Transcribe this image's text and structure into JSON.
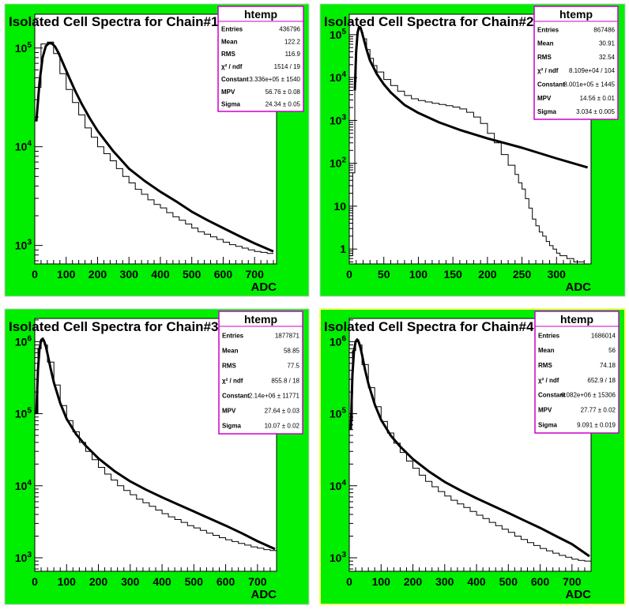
{
  "colors": {
    "pad_fill": "#00ee00",
    "frame_fill": "#ffffff",
    "stats_border": "#cc00cc",
    "stats_fill": "#ffffff",
    "highlight_border": "#ffff66"
  },
  "chart_data": [
    {
      "type": "line",
      "title": "Isolated Cell Spectra for Chain#1",
      "xlabel": "ADC",
      "log_y": true,
      "xlim": [
        0,
        770
      ],
      "ylim": [
        650,
        220000
      ],
      "x_ticks": [
        0,
        100,
        200,
        300,
        400,
        500,
        600,
        700
      ],
      "y_ticks": [
        {
          "value": 1000,
          "label": "10^3"
        },
        {
          "value": 10000,
          "label": "10^4"
        },
        {
          "value": 100000,
          "label": "10^5"
        }
      ],
      "stats": {
        "name": "htemp",
        "rows": [
          {
            "label": "Entries",
            "value": "436796"
          },
          {
            "label": "Mean",
            "value": "122.2"
          },
          {
            "label": "RMS",
            "value": "116.9"
          },
          {
            "label": "χ² / ndf",
            "value": "1514 / 19"
          },
          {
            "label": "Constant",
            "value": "3.336e+05 ± 1540"
          },
          {
            "label": "MPV",
            "value": "56.76 ± 0.08"
          },
          {
            "label": "Sigma",
            "value": "24.34 ± 0.05"
          }
        ]
      },
      "histogram": {
        "edges": [
          0,
          20,
          40,
          60,
          80,
          100,
          120,
          140,
          160,
          180,
          200,
          220,
          240,
          260,
          280,
          300,
          320,
          340,
          360,
          380,
          400,
          420,
          440,
          460,
          480,
          500,
          520,
          540,
          560,
          580,
          600,
          620,
          640,
          660,
          680,
          700,
          720,
          740,
          760
        ],
        "counts": [
          40000,
          110000,
          115000,
          88000,
          55000,
          38000,
          28000,
          21000,
          15500,
          12500,
          10000,
          8500,
          7200,
          6000,
          5000,
          4300,
          3700,
          3300,
          2900,
          2600,
          2400,
          2150,
          1950,
          1800,
          1650,
          1500,
          1380,
          1300,
          1220,
          1150,
          1080,
          1020,
          980,
          940,
          900,
          870,
          850,
          830
        ]
      },
      "fit": {
        "x": [
          5,
          15,
          25,
          35,
          45,
          55,
          65,
          75,
          90,
          110,
          130,
          150,
          175,
          200,
          250,
          300,
          350,
          400,
          450,
          500,
          550,
          600,
          650,
          700,
          760
        ],
        "y": [
          18000,
          45000,
          80000,
          104000,
          112000,
          111000,
          103000,
          90000,
          70000,
          50000,
          36000,
          27000,
          19500,
          14500,
          9000,
          6000,
          4500,
          3500,
          2800,
          2200,
          1800,
          1500,
          1250,
          1050,
          870
        ]
      }
    },
    {
      "type": "line",
      "title": "Isolated Cell Spectra for Chain#2",
      "xlabel": "ADC",
      "log_y": true,
      "xlim": [
        0,
        350
      ],
      "ylim": [
        0.45,
        300000
      ],
      "x_ticks": [
        0,
        50,
        100,
        150,
        200,
        250,
        300
      ],
      "y_ticks": [
        {
          "value": 1,
          "label": "1"
        },
        {
          "value": 10,
          "label": "10"
        },
        {
          "value": 100,
          "label": "10^2"
        },
        {
          "value": 1000,
          "label": "10^3"
        },
        {
          "value": 10000,
          "label": "10^4"
        },
        {
          "value": 100000,
          "label": "10^5"
        }
      ],
      "stats": {
        "name": "htemp",
        "rows": [
          {
            "label": "Entries",
            "value": "867486"
          },
          {
            "label": "Mean",
            "value": "30.91"
          },
          {
            "label": "RMS",
            "value": "32.54"
          },
          {
            "label": "χ² / ndf",
            "value": "8.109e+04 / 104"
          },
          {
            "label": "Constant",
            "value": "8.001e+05 ± 1445"
          },
          {
            "label": "MPV",
            "value": "14.56 ± 0.01"
          },
          {
            "label": "Sigma",
            "value": "3.034 ± 0.005"
          }
        ]
      },
      "histogram": {
        "edges": [
          0,
          5,
          8,
          10,
          12,
          14,
          16,
          18,
          20,
          25,
          30,
          35,
          40,
          50,
          60,
          70,
          80,
          90,
          100,
          110,
          120,
          130,
          140,
          150,
          160,
          170,
          180,
          190,
          200,
          210,
          220,
          230,
          240,
          245,
          250,
          255,
          260,
          265,
          270,
          275,
          280,
          285,
          290,
          295,
          300,
          305,
          310,
          315,
          320,
          325,
          330,
          335,
          340
        ],
        "counts": [
          0.7,
          60,
          8000,
          60000,
          130000,
          155000,
          140000,
          110000,
          80000,
          45000,
          28000,
          19000,
          13500,
          9000,
          6500,
          4800,
          3800,
          3200,
          2900,
          2700,
          2500,
          2350,
          2200,
          2050,
          1850,
          1550,
          1200,
          850,
          500,
          300,
          160,
          90,
          55,
          35,
          25,
          15,
          9,
          5,
          3.5,
          2.5,
          2,
          1.5,
          1.2,
          1,
          0.8,
          0.7,
          0.7,
          0.6,
          0.6,
          0.5,
          0.5,
          0.5
        ]
      },
      "fit": {
        "x": [
          8,
          10,
          12,
          14,
          16,
          18,
          20,
          25,
          30,
          40,
          50,
          60,
          80,
          100,
          130,
          160,
          200,
          250,
          300,
          345
        ],
        "y": [
          5000,
          40000,
          110000,
          150000,
          148000,
          120000,
          90000,
          45000,
          25000,
          12000,
          7000,
          4500,
          2300,
          1500,
          900,
          600,
          380,
          230,
          130,
          80
        ]
      }
    },
    {
      "type": "line",
      "title": "Isolated Cell Spectra for Chain#3",
      "xlabel": "ADC",
      "log_y": true,
      "xlim": [
        0,
        760
      ],
      "ylim": [
        650,
        2100000
      ],
      "x_ticks": [
        0,
        100,
        200,
        300,
        400,
        500,
        600,
        700
      ],
      "y_ticks": [
        {
          "value": 1000,
          "label": "10^3"
        },
        {
          "value": 10000,
          "label": "10^4"
        },
        {
          "value": 100000,
          "label": "10^5"
        },
        {
          "value": 1000000,
          "label": "10^6"
        }
      ],
      "stats": {
        "name": "htemp",
        "rows": [
          {
            "label": "Entries",
            "value": "1877871"
          },
          {
            "label": "Mean",
            "value": "58.85"
          },
          {
            "label": "RMS",
            "value": "77.5"
          },
          {
            "label": "χ² / ndf",
            "value": "855.8 / 18"
          },
          {
            "label": "Constant",
            "value": "2.14e+06 ± 11771"
          },
          {
            "label": "MPV",
            "value": "27.64 ± 0.03"
          },
          {
            "label": "Sigma",
            "value": "10.07 ± 0.02"
          }
        ]
      },
      "histogram": {
        "edges": [
          0,
          10,
          20,
          30,
          40,
          60,
          80,
          100,
          120,
          140,
          160,
          180,
          200,
          220,
          240,
          260,
          280,
          300,
          320,
          340,
          360,
          380,
          400,
          420,
          440,
          460,
          480,
          500,
          520,
          540,
          560,
          580,
          600,
          620,
          640,
          660,
          680,
          700,
          720,
          740,
          760
        ],
        "counts": [
          100000,
          800000,
          1050000,
          900000,
          520000,
          250000,
          130000,
          80000,
          56000,
          40000,
          30000,
          23000,
          18000,
          14500,
          12000,
          10000,
          8600,
          7500,
          6500,
          5800,
          5200,
          4600,
          4100,
          3700,
          3400,
          3100,
          2800,
          2600,
          2400,
          2200,
          2050,
          1900,
          1780,
          1680,
          1580,
          1500,
          1420,
          1360,
          1300,
          1260
        ]
      },
      "fit": {
        "x": [
          5,
          10,
          15,
          20,
          25,
          30,
          35,
          40,
          50,
          60,
          80,
          100,
          130,
          160,
          200,
          250,
          300,
          350,
          400,
          450,
          500,
          550,
          600,
          650,
          700,
          755
        ],
        "y": [
          100000,
          400000,
          800000,
          1050000,
          1100000,
          1000000,
          850000,
          680000,
          420000,
          270000,
          140000,
          85000,
          52000,
          36000,
          24000,
          16000,
          11500,
          8800,
          6900,
          5500,
          4400,
          3500,
          2800,
          2200,
          1700,
          1320
        ]
      }
    },
    {
      "type": "line",
      "title": "Isolated Cell Spectra for Chain#4",
      "xlabel": "ADC",
      "log_y": true,
      "xlim": [
        0,
        760
      ],
      "ylim": [
        650,
        2100000
      ],
      "x_ticks": [
        0,
        100,
        200,
        300,
        400,
        500,
        600,
        700
      ],
      "y_ticks": [
        {
          "value": 1000,
          "label": "10^3"
        },
        {
          "value": 10000,
          "label": "10^4"
        },
        {
          "value": 100000,
          "label": "10^5"
        },
        {
          "value": 1000000,
          "label": "10^6"
        }
      ],
      "stats": {
        "name": "htemp",
        "rows": [
          {
            "label": "Entries",
            "value": "1686014"
          },
          {
            "label": "Mean",
            "value": "56"
          },
          {
            "label": "RMS",
            "value": "74.18"
          },
          {
            "label": "χ² / ndf",
            "value": "652.9 / 18"
          },
          {
            "label": "Constant",
            "value": "6.082e+06 ± 15306"
          },
          {
            "label": "MPV",
            "value": "27.77 ± 0.02"
          },
          {
            "label": "Sigma",
            "value": "9.091 ± 0.019"
          }
        ]
      },
      "histogram": {
        "edges": [
          0,
          10,
          20,
          30,
          40,
          60,
          80,
          100,
          120,
          140,
          160,
          180,
          200,
          220,
          240,
          260,
          280,
          300,
          320,
          340,
          360,
          380,
          400,
          420,
          440,
          460,
          480,
          500,
          520,
          540,
          560,
          580,
          600,
          620,
          640,
          660,
          680,
          700,
          720,
          740,
          760
        ],
        "counts": [
          80000,
          750000,
          1050000,
          900000,
          480000,
          230000,
          125000,
          78000,
          54000,
          39000,
          29000,
          22000,
          17500,
          14000,
          11500,
          9700,
          8300,
          7200,
          6300,
          5600,
          5000,
          4400,
          3900,
          3500,
          3100,
          2800,
          2500,
          2250,
          2000,
          1800,
          1620,
          1480,
          1350,
          1250,
          1160,
          1080,
          1020,
          960,
          920,
          900
        ]
      },
      "fit": {
        "x": [
          5,
          10,
          15,
          20,
          25,
          30,
          35,
          40,
          50,
          60,
          80,
          100,
          130,
          160,
          200,
          250,
          300,
          350,
          400,
          450,
          500,
          550,
          600,
          650,
          700,
          755
        ],
        "y": [
          60000,
          350000,
          750000,
          1000000,
          1070000,
          980000,
          830000,
          660000,
          400000,
          260000,
          135000,
          82000,
          50000,
          35000,
          23500,
          15800,
          11300,
          8600,
          6700,
          5300,
          4200,
          3300,
          2600,
          2000,
          1550,
          1050
        ]
      }
    }
  ]
}
